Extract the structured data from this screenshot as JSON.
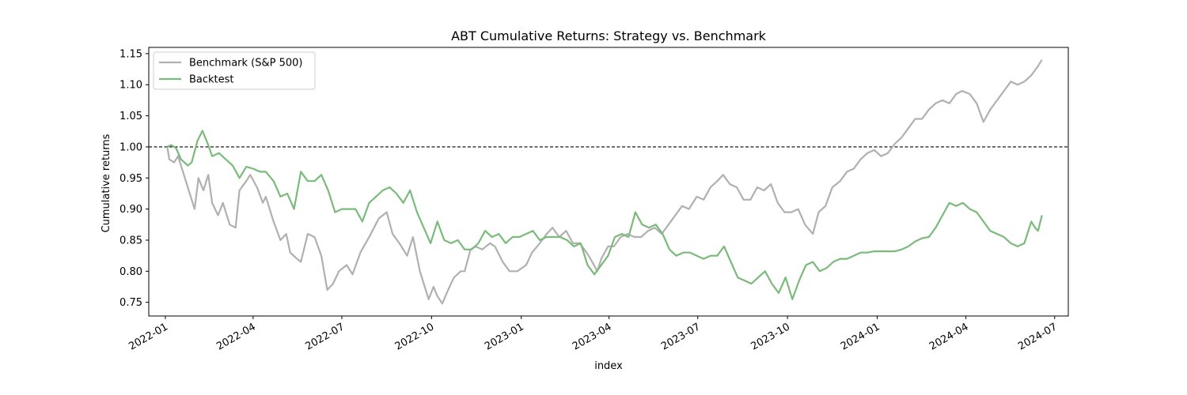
{
  "chart_data": {
    "type": "line",
    "title": "ABT Cumulative Returns: Strategy vs. Benchmark",
    "xlabel": "index",
    "ylabel": "Cumulative returns",
    "x_range": [
      "2021-12-15",
      "2024-07-15"
    ],
    "ylim": [
      0.728,
      1.16
    ],
    "x_ticks": [
      "2022-01",
      "2022-04",
      "2022-07",
      "2022-10",
      "2023-01",
      "2023-04",
      "2023-07",
      "2023-10",
      "2024-01",
      "2024-04",
      "2024-07"
    ],
    "y_ticks": [
      "0.75",
      "0.80",
      "0.85",
      "0.90",
      "0.95",
      "1.00",
      "1.05",
      "1.10",
      "1.15"
    ],
    "reference_line": {
      "y": 1.0,
      "style": "dashed",
      "color": "#000000"
    },
    "grid": false,
    "legend_position": "top-left",
    "series": [
      {
        "name": "Benchmark (S&P 500)",
        "color": "#b0b0b0",
        "points": [
          [
            "2022-01-03",
            1.0
          ],
          [
            "2022-01-05",
            0.98
          ],
          [
            "2022-01-10",
            0.975
          ],
          [
            "2022-01-14",
            0.985
          ],
          [
            "2022-01-20",
            0.955
          ],
          [
            "2022-01-27",
            0.92
          ],
          [
            "2022-01-31",
            0.9
          ],
          [
            "2022-02-04",
            0.95
          ],
          [
            "2022-02-09",
            0.93
          ],
          [
            "2022-02-14",
            0.955
          ],
          [
            "2022-02-18",
            0.91
          ],
          [
            "2022-02-24",
            0.89
          ],
          [
            "2022-03-01",
            0.91
          ],
          [
            "2022-03-08",
            0.875
          ],
          [
            "2022-03-14",
            0.87
          ],
          [
            "2022-03-18",
            0.93
          ],
          [
            "2022-03-25",
            0.945
          ],
          [
            "2022-03-29",
            0.955
          ],
          [
            "2022-04-05",
            0.935
          ],
          [
            "2022-04-11",
            0.91
          ],
          [
            "2022-04-14",
            0.92
          ],
          [
            "2022-04-22",
            0.88
          ],
          [
            "2022-04-29",
            0.85
          ],
          [
            "2022-05-05",
            0.86
          ],
          [
            "2022-05-09",
            0.83
          ],
          [
            "2022-05-16",
            0.82
          ],
          [
            "2022-05-20",
            0.815
          ],
          [
            "2022-05-27",
            0.86
          ],
          [
            "2022-06-03",
            0.855
          ],
          [
            "2022-06-10",
            0.825
          ],
          [
            "2022-06-16",
            0.77
          ],
          [
            "2022-06-22",
            0.78
          ],
          [
            "2022-06-28",
            0.8
          ],
          [
            "2022-07-06",
            0.81
          ],
          [
            "2022-07-12",
            0.795
          ],
          [
            "2022-07-20",
            0.83
          ],
          [
            "2022-07-29",
            0.855
          ],
          [
            "2022-08-08",
            0.885
          ],
          [
            "2022-08-16",
            0.895
          ],
          [
            "2022-08-22",
            0.86
          ],
          [
            "2022-08-29",
            0.845
          ],
          [
            "2022-09-06",
            0.825
          ],
          [
            "2022-09-12",
            0.855
          ],
          [
            "2022-09-19",
            0.8
          ],
          [
            "2022-09-28",
            0.755
          ],
          [
            "2022-10-03",
            0.775
          ],
          [
            "2022-10-07",
            0.76
          ],
          [
            "2022-10-12",
            0.748
          ],
          [
            "2022-10-18",
            0.77
          ],
          [
            "2022-10-24",
            0.79
          ],
          [
            "2022-10-31",
            0.8
          ],
          [
            "2022-11-04",
            0.8
          ],
          [
            "2022-11-10",
            0.835
          ],
          [
            "2022-11-15",
            0.84
          ],
          [
            "2022-11-22",
            0.835
          ],
          [
            "2022-11-30",
            0.845
          ],
          [
            "2022-12-05",
            0.84
          ],
          [
            "2022-12-13",
            0.815
          ],
          [
            "2022-12-20",
            0.8
          ],
          [
            "2022-12-28",
            0.8
          ],
          [
            "2023-01-06",
            0.81
          ],
          [
            "2023-01-12",
            0.83
          ],
          [
            "2023-01-20",
            0.845
          ],
          [
            "2023-01-27",
            0.86
          ],
          [
            "2023-02-02",
            0.87
          ],
          [
            "2023-02-09",
            0.855
          ],
          [
            "2023-02-16",
            0.865
          ],
          [
            "2023-02-23",
            0.845
          ],
          [
            "2023-03-02",
            0.845
          ],
          [
            "2023-03-09",
            0.83
          ],
          [
            "2023-03-13",
            0.82
          ],
          [
            "2023-03-20",
            0.8
          ],
          [
            "2023-03-24",
            0.82
          ],
          [
            "2023-03-31",
            0.84
          ],
          [
            "2023-04-06",
            0.84
          ],
          [
            "2023-04-13",
            0.855
          ],
          [
            "2023-04-20",
            0.86
          ],
          [
            "2023-04-27",
            0.855
          ],
          [
            "2023-05-04",
            0.855
          ],
          [
            "2023-05-11",
            0.865
          ],
          [
            "2023-05-18",
            0.87
          ],
          [
            "2023-05-25",
            0.86
          ],
          [
            "2023-06-01",
            0.875
          ],
          [
            "2023-06-08",
            0.89
          ],
          [
            "2023-06-15",
            0.905
          ],
          [
            "2023-06-22",
            0.9
          ],
          [
            "2023-06-30",
            0.92
          ],
          [
            "2023-07-07",
            0.915
          ],
          [
            "2023-07-14",
            0.935
          ],
          [
            "2023-07-21",
            0.945
          ],
          [
            "2023-07-27",
            0.955
          ],
          [
            "2023-08-03",
            0.94
          ],
          [
            "2023-08-10",
            0.935
          ],
          [
            "2023-08-17",
            0.915
          ],
          [
            "2023-08-24",
            0.915
          ],
          [
            "2023-08-31",
            0.935
          ],
          [
            "2023-09-07",
            0.93
          ],
          [
            "2023-09-14",
            0.94
          ],
          [
            "2023-09-21",
            0.91
          ],
          [
            "2023-09-28",
            0.895
          ],
          [
            "2023-10-05",
            0.895
          ],
          [
            "2023-10-12",
            0.9
          ],
          [
            "2023-10-19",
            0.875
          ],
          [
            "2023-10-27",
            0.86
          ],
          [
            "2023-11-02",
            0.895
          ],
          [
            "2023-11-09",
            0.905
          ],
          [
            "2023-11-16",
            0.935
          ],
          [
            "2023-11-24",
            0.945
          ],
          [
            "2023-12-01",
            0.96
          ],
          [
            "2023-12-08",
            0.965
          ],
          [
            "2023-12-15",
            0.98
          ],
          [
            "2023-12-22",
            0.99
          ],
          [
            "2023-12-29",
            0.995
          ],
          [
            "2024-01-05",
            0.985
          ],
          [
            "2024-01-12",
            0.99
          ],
          [
            "2024-01-19",
            1.005
          ],
          [
            "2024-01-26",
            1.015
          ],
          [
            "2024-02-02",
            1.03
          ],
          [
            "2024-02-09",
            1.045
          ],
          [
            "2024-02-16",
            1.045
          ],
          [
            "2024-02-23",
            1.06
          ],
          [
            "2024-03-01",
            1.07
          ],
          [
            "2024-03-08",
            1.075
          ],
          [
            "2024-03-15",
            1.07
          ],
          [
            "2024-03-22",
            1.085
          ],
          [
            "2024-03-28",
            1.09
          ],
          [
            "2024-04-05",
            1.085
          ],
          [
            "2024-04-12",
            1.07
          ],
          [
            "2024-04-19",
            1.04
          ],
          [
            "2024-04-26",
            1.06
          ],
          [
            "2024-05-03",
            1.075
          ],
          [
            "2024-05-10",
            1.09
          ],
          [
            "2024-05-17",
            1.105
          ],
          [
            "2024-05-24",
            1.1
          ],
          [
            "2024-05-31",
            1.105
          ],
          [
            "2024-06-07",
            1.115
          ],
          [
            "2024-06-14",
            1.13
          ],
          [
            "2024-06-18",
            1.14
          ]
        ]
      },
      {
        "name": "Backtest",
        "color": "#7aba7a",
        "points": [
          [
            "2022-01-03",
            1.0
          ],
          [
            "2022-01-07",
            1.003
          ],
          [
            "2022-01-12",
            0.998
          ],
          [
            "2022-01-17",
            0.98
          ],
          [
            "2022-01-24",
            0.97
          ],
          [
            "2022-01-28",
            0.975
          ],
          [
            "2022-02-03",
            1.01
          ],
          [
            "2022-02-08",
            1.026
          ],
          [
            "2022-02-14",
            1.003
          ],
          [
            "2022-02-18",
            0.985
          ],
          [
            "2022-02-25",
            0.99
          ],
          [
            "2022-03-04",
            0.98
          ],
          [
            "2022-03-11",
            0.97
          ],
          [
            "2022-03-18",
            0.95
          ],
          [
            "2022-03-25",
            0.968
          ],
          [
            "2022-04-01",
            0.965
          ],
          [
            "2022-04-08",
            0.96
          ],
          [
            "2022-04-14",
            0.96
          ],
          [
            "2022-04-22",
            0.945
          ],
          [
            "2022-04-29",
            0.92
          ],
          [
            "2022-05-06",
            0.925
          ],
          [
            "2022-05-13",
            0.9
          ],
          [
            "2022-05-20",
            0.96
          ],
          [
            "2022-05-27",
            0.945
          ],
          [
            "2022-06-03",
            0.945
          ],
          [
            "2022-06-10",
            0.955
          ],
          [
            "2022-06-17",
            0.93
          ],
          [
            "2022-06-24",
            0.895
          ],
          [
            "2022-07-01",
            0.9
          ],
          [
            "2022-07-08",
            0.9
          ],
          [
            "2022-07-15",
            0.9
          ],
          [
            "2022-07-22",
            0.88
          ],
          [
            "2022-07-29",
            0.91
          ],
          [
            "2022-08-05",
            0.92
          ],
          [
            "2022-08-12",
            0.93
          ],
          [
            "2022-08-19",
            0.935
          ],
          [
            "2022-08-26",
            0.925
          ],
          [
            "2022-09-02",
            0.91
          ],
          [
            "2022-09-09",
            0.93
          ],
          [
            "2022-09-16",
            0.895
          ],
          [
            "2022-09-23",
            0.87
          ],
          [
            "2022-09-30",
            0.845
          ],
          [
            "2022-10-07",
            0.88
          ],
          [
            "2022-10-14",
            0.85
          ],
          [
            "2022-10-21",
            0.845
          ],
          [
            "2022-10-28",
            0.85
          ],
          [
            "2022-11-04",
            0.835
          ],
          [
            "2022-11-11",
            0.835
          ],
          [
            "2022-11-18",
            0.845
          ],
          [
            "2022-11-25",
            0.865
          ],
          [
            "2022-12-02",
            0.855
          ],
          [
            "2022-12-09",
            0.86
          ],
          [
            "2022-12-16",
            0.845
          ],
          [
            "2022-12-23",
            0.855
          ],
          [
            "2022-12-30",
            0.855
          ],
          [
            "2023-01-06",
            0.86
          ],
          [
            "2023-01-13",
            0.865
          ],
          [
            "2023-01-20",
            0.85
          ],
          [
            "2023-01-27",
            0.855
          ],
          [
            "2023-02-03",
            0.855
          ],
          [
            "2023-02-10",
            0.855
          ],
          [
            "2023-02-17",
            0.85
          ],
          [
            "2023-02-24",
            0.84
          ],
          [
            "2023-03-03",
            0.845
          ],
          [
            "2023-03-10",
            0.81
          ],
          [
            "2023-03-17",
            0.795
          ],
          [
            "2023-03-24",
            0.81
          ],
          [
            "2023-03-31",
            0.825
          ],
          [
            "2023-04-07",
            0.855
          ],
          [
            "2023-04-14",
            0.86
          ],
          [
            "2023-04-21",
            0.855
          ],
          [
            "2023-04-28",
            0.895
          ],
          [
            "2023-05-05",
            0.875
          ],
          [
            "2023-05-12",
            0.87
          ],
          [
            "2023-05-19",
            0.875
          ],
          [
            "2023-05-26",
            0.86
          ],
          [
            "2023-06-02",
            0.835
          ],
          [
            "2023-06-09",
            0.825
          ],
          [
            "2023-06-16",
            0.83
          ],
          [
            "2023-06-23",
            0.83
          ],
          [
            "2023-06-30",
            0.825
          ],
          [
            "2023-07-07",
            0.82
          ],
          [
            "2023-07-14",
            0.825
          ],
          [
            "2023-07-21",
            0.825
          ],
          [
            "2023-07-28",
            0.84
          ],
          [
            "2023-08-04",
            0.815
          ],
          [
            "2023-08-11",
            0.79
          ],
          [
            "2023-08-18",
            0.785
          ],
          [
            "2023-08-25",
            0.78
          ],
          [
            "2023-09-01",
            0.79
          ],
          [
            "2023-09-08",
            0.8
          ],
          [
            "2023-09-15",
            0.78
          ],
          [
            "2023-09-22",
            0.765
          ],
          [
            "2023-09-29",
            0.79
          ],
          [
            "2023-10-06",
            0.755
          ],
          [
            "2023-10-13",
            0.785
          ],
          [
            "2023-10-20",
            0.81
          ],
          [
            "2023-10-27",
            0.815
          ],
          [
            "2023-11-03",
            0.8
          ],
          [
            "2023-11-10",
            0.805
          ],
          [
            "2023-11-17",
            0.815
          ],
          [
            "2023-11-24",
            0.82
          ],
          [
            "2023-12-01",
            0.82
          ],
          [
            "2023-12-08",
            0.825
          ],
          [
            "2023-12-15",
            0.83
          ],
          [
            "2023-12-22",
            0.83
          ],
          [
            "2023-12-29",
            0.832
          ],
          [
            "2024-01-05",
            0.832
          ],
          [
            "2024-01-12",
            0.832
          ],
          [
            "2024-01-19",
            0.832
          ],
          [
            "2024-01-26",
            0.835
          ],
          [
            "2024-02-02",
            0.84
          ],
          [
            "2024-02-09",
            0.848
          ],
          [
            "2024-02-16",
            0.853
          ],
          [
            "2024-02-23",
            0.855
          ],
          [
            "2024-03-01",
            0.87
          ],
          [
            "2024-03-08",
            0.89
          ],
          [
            "2024-03-15",
            0.91
          ],
          [
            "2024-03-22",
            0.905
          ],
          [
            "2024-03-29",
            0.91
          ],
          [
            "2024-04-05",
            0.9
          ],
          [
            "2024-04-12",
            0.895
          ],
          [
            "2024-04-19",
            0.88
          ],
          [
            "2024-04-26",
            0.865
          ],
          [
            "2024-05-03",
            0.86
          ],
          [
            "2024-05-10",
            0.855
          ],
          [
            "2024-05-17",
            0.845
          ],
          [
            "2024-05-24",
            0.84
          ],
          [
            "2024-05-31",
            0.845
          ],
          [
            "2024-06-07",
            0.88
          ],
          [
            "2024-06-11",
            0.87
          ],
          [
            "2024-06-14",
            0.865
          ],
          [
            "2024-06-18",
            0.89
          ]
        ]
      }
    ]
  }
}
